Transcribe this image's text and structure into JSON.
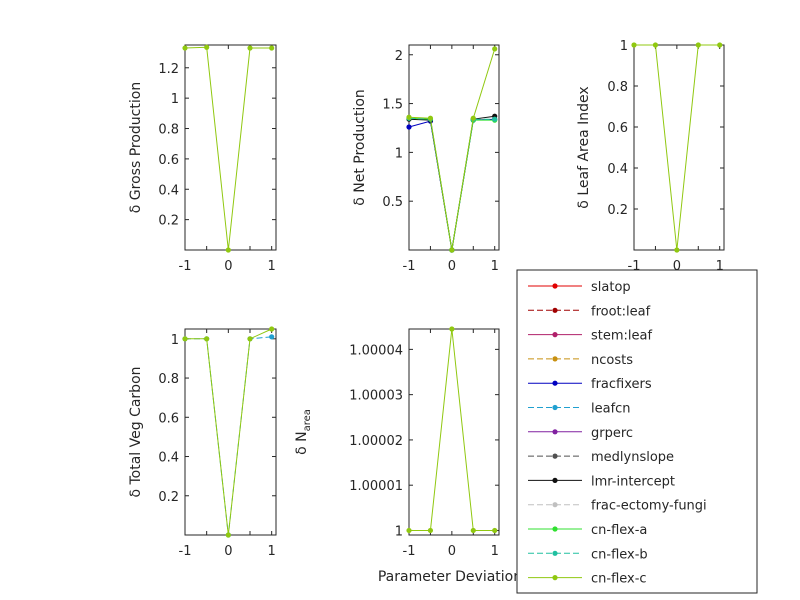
{
  "figure": {
    "xlabel": "Parameter Deviation"
  },
  "legend": {
    "placement": "bottom-right",
    "entries": [
      {
        "name": "slatop",
        "color": "#e00000",
        "dash": "solid"
      },
      {
        "name": "froot:leaf",
        "color": "#a00000",
        "dash": "dashed"
      },
      {
        "name": "stem:leaf",
        "color": "#b0206a",
        "dash": "solid"
      },
      {
        "name": "ncosts",
        "color": "#c89010",
        "dash": "dashed"
      },
      {
        "name": "fracfixers",
        "color": "#0000c0",
        "dash": "solid"
      },
      {
        "name": "leafcn",
        "color": "#20a0d0",
        "dash": "dashed"
      },
      {
        "name": "grperc",
        "color": "#8020a0",
        "dash": "solid"
      },
      {
        "name": "medlynslope",
        "color": "#505050",
        "dash": "dashed"
      },
      {
        "name": "lmr-intercept",
        "color": "#101010",
        "dash": "solid"
      },
      {
        "name": "frac-ectomy-fungi",
        "color": "#c0c0c0",
        "dash": "dashed"
      },
      {
        "name": "cn-flex-a",
        "color": "#30e030",
        "dash": "solid"
      },
      {
        "name": "cn-flex-b",
        "color": "#20c0a0",
        "dash": "dashed"
      },
      {
        "name": "cn-flex-c",
        "color": "#90c810",
        "dash": "solid"
      }
    ]
  },
  "chart_data": [
    {
      "type": "line",
      "ylabel": "δ Gross Production",
      "xlim": [
        -1,
        1.1
      ],
      "ylim": [
        0,
        1.35
      ],
      "xticks": [
        -1,
        -0.5,
        0,
        0.5,
        1
      ],
      "xtick_labels": [
        "-1",
        "",
        "0",
        "",
        "1"
      ],
      "yticks": [
        0.2,
        0.4,
        0.6,
        0.8,
        1,
        1.2
      ],
      "ytick_labels": [
        "0.2",
        "0.4",
        "0.6",
        "0.8",
        "1",
        "1.2"
      ],
      "x": [
        -1,
        -0.5,
        0,
        0.5,
        1
      ],
      "series": [
        {
          "name": "cn-flex-c",
          "values": [
            1.33,
            1.335,
            0,
            1.33,
            1.33
          ]
        }
      ]
    },
    {
      "type": "line",
      "ylabel": "δ Net Production",
      "xlim": [
        -1,
        1.1
      ],
      "ylim": [
        0,
        2.1
      ],
      "xticks": [
        -1,
        -0.5,
        0,
        0.5,
        1
      ],
      "xtick_labels": [
        "-1",
        "",
        "0",
        "",
        "1"
      ],
      "yticks": [
        0.5,
        1,
        1.5,
        2
      ],
      "ytick_labels": [
        "0.5",
        "1",
        "1.5",
        "2"
      ],
      "x": [
        -1,
        -0.5,
        0,
        0.5,
        1
      ],
      "series": [
        {
          "name": "fracfixers",
          "values": [
            1.26,
            1.32,
            0,
            1.33,
            1.34
          ]
        },
        {
          "name": "lmr-intercept",
          "values": [
            1.34,
            1.33,
            0,
            1.34,
            1.37
          ]
        },
        {
          "name": "cn-flex-a",
          "values": [
            1.35,
            1.34,
            0,
            1.33,
            1.33
          ]
        },
        {
          "name": "cn-flex-b",
          "values": [
            1.35,
            1.34,
            0,
            1.34,
            1.34
          ]
        },
        {
          "name": "cn-flex-c",
          "values": [
            1.36,
            1.35,
            0,
            1.35,
            2.06
          ]
        }
      ]
    },
    {
      "type": "line",
      "ylabel": "δ Leaf Area Index",
      "xlim": [
        -1,
        1.1
      ],
      "ylim": [
        0,
        1
      ],
      "xticks": [
        -1,
        -0.5,
        0,
        0.5,
        1
      ],
      "xtick_labels": [
        "-1",
        "",
        "0",
        "",
        "1"
      ],
      "yticks": [
        0.2,
        0.4,
        0.6,
        0.8,
        1
      ],
      "ytick_labels": [
        "0.2",
        "0.4",
        "0.6",
        "0.8",
        "1"
      ],
      "x": [
        -1,
        -0.5,
        0,
        0.5,
        1
      ],
      "series": [
        {
          "name": "cn-flex-c",
          "values": [
            1,
            1,
            0,
            1,
            1
          ]
        }
      ]
    },
    {
      "type": "line",
      "ylabel": "δ Total Veg Carbon",
      "xlim": [
        -1,
        1.1
      ],
      "ylim": [
        0,
        1.05
      ],
      "xticks": [
        -1,
        -0.5,
        0,
        0.5,
        1
      ],
      "xtick_labels": [
        "-1",
        "",
        "0",
        "",
        "1"
      ],
      "yticks": [
        0.2,
        0.4,
        0.6,
        0.8,
        1
      ],
      "ytick_labels": [
        "0.2",
        "0.4",
        "0.6",
        "0.8",
        "1"
      ],
      "x": [
        -1,
        -0.5,
        0,
        0.5,
        1
      ],
      "series": [
        {
          "name": "leafcn",
          "values": [
            1,
            1,
            0,
            1,
            1.01
          ]
        },
        {
          "name": "cn-flex-c",
          "values": [
            1,
            1,
            0,
            1,
            1.05
          ]
        }
      ]
    },
    {
      "type": "line",
      "ylabel": "δ N",
      "ylabel_sub": "area",
      "xlim": [
        -1,
        1.1
      ],
      "ylim": [
        0.999999,
        1.0000445
      ],
      "xticks": [
        -1,
        -0.5,
        0,
        0.5,
        1
      ],
      "xtick_labels": [
        "-1",
        "",
        "0",
        "",
        "1"
      ],
      "yticks": [
        1,
        1.00001,
        1.00002,
        1.00003,
        1.00004
      ],
      "ytick_labels": [
        "1",
        "1.00001",
        "1.00002",
        "1.00003",
        "1.00004"
      ],
      "x": [
        -1,
        -0.5,
        0,
        0.5,
        1
      ],
      "series": [
        {
          "name": "cn-flex-c",
          "values": [
            1,
            1,
            1.0000445,
            1,
            1
          ]
        }
      ]
    }
  ]
}
